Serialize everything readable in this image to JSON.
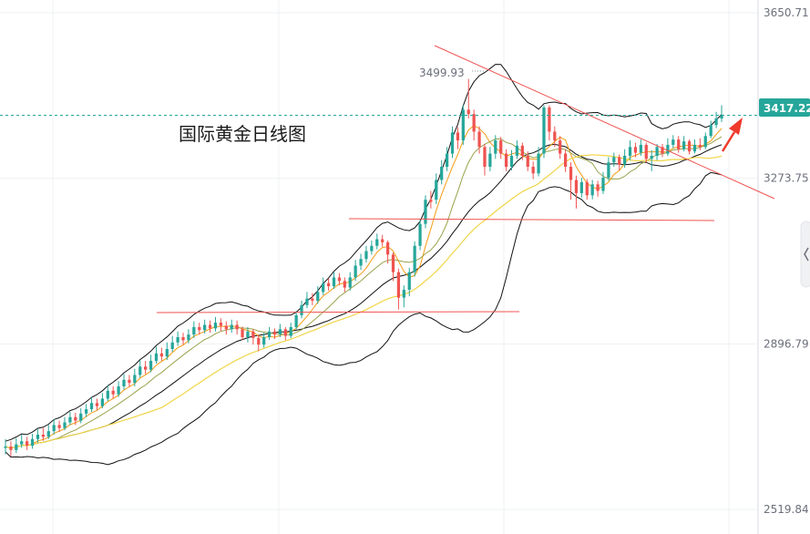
{
  "title": "国际黄金日线图",
  "peak_label": "3499.93",
  "current_price": "3417.22",
  "colors": {
    "up": "#26a69a",
    "down": "#ef5350",
    "boll_bands": "#111111",
    "ma_orange": "#f39c12",
    "ma_olive": "#9aa24a",
    "ma_yellow": "#f0d548",
    "trendline": "#ef5350",
    "price_tag_bg": "#26a69a",
    "grid": "#eef0f3"
  },
  "chart_data": {
    "type": "candlestick",
    "title": "国际黄金日线图",
    "ylim": [
      2519.84,
      3650.71
    ],
    "y_ticks": [
      "3650.71",
      "3273.75",
      "2896.79",
      "2519.84"
    ],
    "current_price": 3417.22,
    "peak": 3499.93,
    "candles": [
      [
        2660,
        2663,
        2680,
        2645
      ],
      [
        2663,
        2655,
        2675,
        2640
      ],
      [
        2655,
        2668,
        2682,
        2648
      ],
      [
        2668,
        2675,
        2690,
        2660
      ],
      [
        2675,
        2665,
        2685,
        2655
      ],
      [
        2665,
        2680,
        2692,
        2658
      ],
      [
        2680,
        2690,
        2702,
        2672
      ],
      [
        2690,
        2685,
        2705,
        2676
      ],
      [
        2685,
        2698,
        2712,
        2680
      ],
      [
        2698,
        2712,
        2725,
        2690
      ],
      [
        2712,
        2705,
        2722,
        2696
      ],
      [
        2705,
        2718,
        2730,
        2700
      ],
      [
        2718,
        2730,
        2742,
        2712
      ],
      [
        2730,
        2722,
        2740,
        2712
      ],
      [
        2722,
        2738,
        2750,
        2716
      ],
      [
        2738,
        2748,
        2760,
        2730
      ],
      [
        2748,
        2762,
        2775,
        2742
      ],
      [
        2762,
        2755,
        2772,
        2746
      ],
      [
        2755,
        2772,
        2785,
        2750
      ],
      [
        2772,
        2790,
        2802,
        2766
      ],
      [
        2790,
        2782,
        2800,
        2772
      ],
      [
        2782,
        2800,
        2812,
        2776
      ],
      [
        2800,
        2815,
        2828,
        2792
      ],
      [
        2815,
        2808,
        2826,
        2798
      ],
      [
        2808,
        2826,
        2840,
        2800
      ],
      [
        2826,
        2845,
        2860,
        2820
      ],
      [
        2845,
        2838,
        2858,
        2828
      ],
      [
        2838,
        2858,
        2872,
        2832
      ],
      [
        2858,
        2875,
        2890,
        2852
      ],
      [
        2875,
        2868,
        2888,
        2858
      ],
      [
        2868,
        2885,
        2900,
        2860
      ],
      [
        2885,
        2900,
        2915,
        2878
      ],
      [
        2900,
        2912,
        2925,
        2892
      ],
      [
        2912,
        2905,
        2922,
        2895
      ],
      [
        2905,
        2918,
        2930,
        2898
      ],
      [
        2918,
        2935,
        2948,
        2910
      ],
      [
        2935,
        2928,
        2945,
        2918
      ],
      [
        2928,
        2940,
        2952,
        2920
      ],
      [
        2940,
        2932,
        2950,
        2922
      ],
      [
        2932,
        2945,
        2958,
        2925
      ],
      [
        2945,
        2938,
        2955,
        2926
      ],
      [
        2938,
        2930,
        2948,
        2918
      ],
      [
        2930,
        2940,
        2952,
        2922
      ],
      [
        2940,
        2930,
        2950,
        2918
      ],
      [
        2930,
        2912,
        2936,
        2905
      ],
      [
        2912,
        2925,
        2935,
        2900
      ],
      [
        2925,
        2910,
        2930,
        2895
      ],
      [
        2910,
        2895,
        2918,
        2880
      ],
      [
        2895,
        2912,
        2922,
        2888
      ],
      [
        2912,
        2925,
        2935,
        2906
      ],
      [
        2925,
        2918,
        2932,
        2908
      ],
      [
        2918,
        2930,
        2942,
        2912
      ],
      [
        2930,
        2915,
        2935,
        2905
      ],
      [
        2915,
        2935,
        2945,
        2910
      ],
      [
        2935,
        2962,
        2972,
        2930
      ],
      [
        2962,
        2985,
        2995,
        2955
      ],
      [
        2985,
        3000,
        3015,
        2978
      ],
      [
        3000,
        2995,
        3012,
        2985
      ],
      [
        2995,
        3015,
        3028,
        2988
      ],
      [
        3015,
        3035,
        3048,
        3008
      ],
      [
        3035,
        3028,
        3045,
        3018
      ],
      [
        3028,
        3048,
        3060,
        3022
      ],
      [
        3048,
        3040,
        3058,
        3030
      ],
      [
        3040,
        3025,
        3048,
        3015
      ],
      [
        3025,
        3048,
        3060,
        3018
      ],
      [
        3048,
        3075,
        3088,
        3040
      ],
      [
        3075,
        3090,
        3102,
        3065
      ],
      [
        3090,
        3108,
        3120,
        3082
      ],
      [
        3108,
        3120,
        3132,
        3100
      ],
      [
        3120,
        3135,
        3148,
        3112
      ],
      [
        3135,
        3128,
        3145,
        3118
      ],
      [
        3128,
        3100,
        3132,
        3080
      ],
      [
        3100,
        3060,
        3105,
        3040
      ],
      [
        3060,
        3002,
        3068,
        2975
      ],
      [
        3002,
        3020,
        3030,
        2980
      ],
      [
        3020,
        3060,
        3070,
        3005
      ],
      [
        3060,
        3120,
        3130,
        3050
      ],
      [
        3120,
        3170,
        3180,
        3110
      ],
      [
        3170,
        3225,
        3235,
        3160
      ],
      [
        3225,
        3220,
        3245,
        3205
      ],
      [
        3225,
        3270,
        3285,
        3215
      ],
      [
        3270,
        3300,
        3315,
        3260
      ],
      [
        3300,
        3330,
        3345,
        3290
      ],
      [
        3330,
        3378,
        3392,
        3320
      ],
      [
        3378,
        3360,
        3390,
        3340
      ],
      [
        3360,
        3430,
        3440,
        3350
      ],
      [
        3430,
        3420,
        3500,
        3410
      ],
      [
        3420,
        3380,
        3430,
        3360
      ],
      [
        3380,
        3345,
        3392,
        3330
      ],
      [
        3345,
        3300,
        3352,
        3280
      ],
      [
        3300,
        3330,
        3345,
        3290
      ],
      [
        3330,
        3360,
        3372,
        3318
      ],
      [
        3360,
        3330,
        3368,
        3318
      ],
      [
        3330,
        3300,
        3340,
        3290
      ],
      [
        3300,
        3325,
        3338,
        3292
      ],
      [
        3325,
        3348,
        3360,
        3318
      ],
      [
        3348,
        3325,
        3355,
        3315
      ],
      [
        3325,
        3300,
        3335,
        3290
      ],
      [
        3300,
        3285,
        3312,
        3272
      ],
      [
        3285,
        3330,
        3345,
        3278
      ],
      [
        3330,
        3435,
        3440,
        3320
      ],
      [
        3435,
        3380,
        3440,
        3360
      ],
      [
        3380,
        3360,
        3392,
        3345
      ],
      [
        3360,
        3330,
        3370,
        3318
      ],
      [
        3330,
        3300,
        3340,
        3288
      ],
      [
        3300,
        3270,
        3310,
        3225
      ],
      [
        3270,
        3240,
        3280,
        3205
      ],
      [
        3240,
        3265,
        3275,
        3230
      ],
      [
        3265,
        3235,
        3272,
        3225
      ],
      [
        3235,
        3260,
        3270,
        3226
      ],
      [
        3260,
        3245,
        3268,
        3232
      ],
      [
        3245,
        3275,
        3288,
        3238
      ],
      [
        3275,
        3310,
        3322,
        3268
      ],
      [
        3310,
        3322,
        3332,
        3300
      ],
      [
        3322,
        3305,
        3328,
        3292
      ],
      [
        3305,
        3325,
        3340,
        3298
      ],
      [
        3325,
        3345,
        3360,
        3315
      ],
      [
        3345,
        3332,
        3355,
        3322
      ],
      [
        3332,
        3350,
        3362,
        3325
      ],
      [
        3350,
        3318,
        3355,
        3310
      ],
      [
        3318,
        3325,
        3338,
        3290
      ],
      [
        3325,
        3345,
        3352,
        3315
      ],
      [
        3345,
        3330,
        3352,
        3322
      ],
      [
        3330,
        3350,
        3365,
        3325
      ],
      [
        3350,
        3362,
        3372,
        3342
      ],
      [
        3362,
        3340,
        3370,
        3332
      ],
      [
        3340,
        3358,
        3370,
        3335
      ],
      [
        3358,
        3335,
        3362,
        3328
      ],
      [
        3335,
        3350,
        3362,
        3330
      ],
      [
        3350,
        3345,
        3365,
        3338
      ],
      [
        3345,
        3370,
        3378,
        3340
      ],
      [
        3370,
        3395,
        3405,
        3365
      ],
      [
        3395,
        3410,
        3425,
        3388
      ],
      [
        3410,
        3417,
        3440,
        3402
      ]
    ]
  }
}
